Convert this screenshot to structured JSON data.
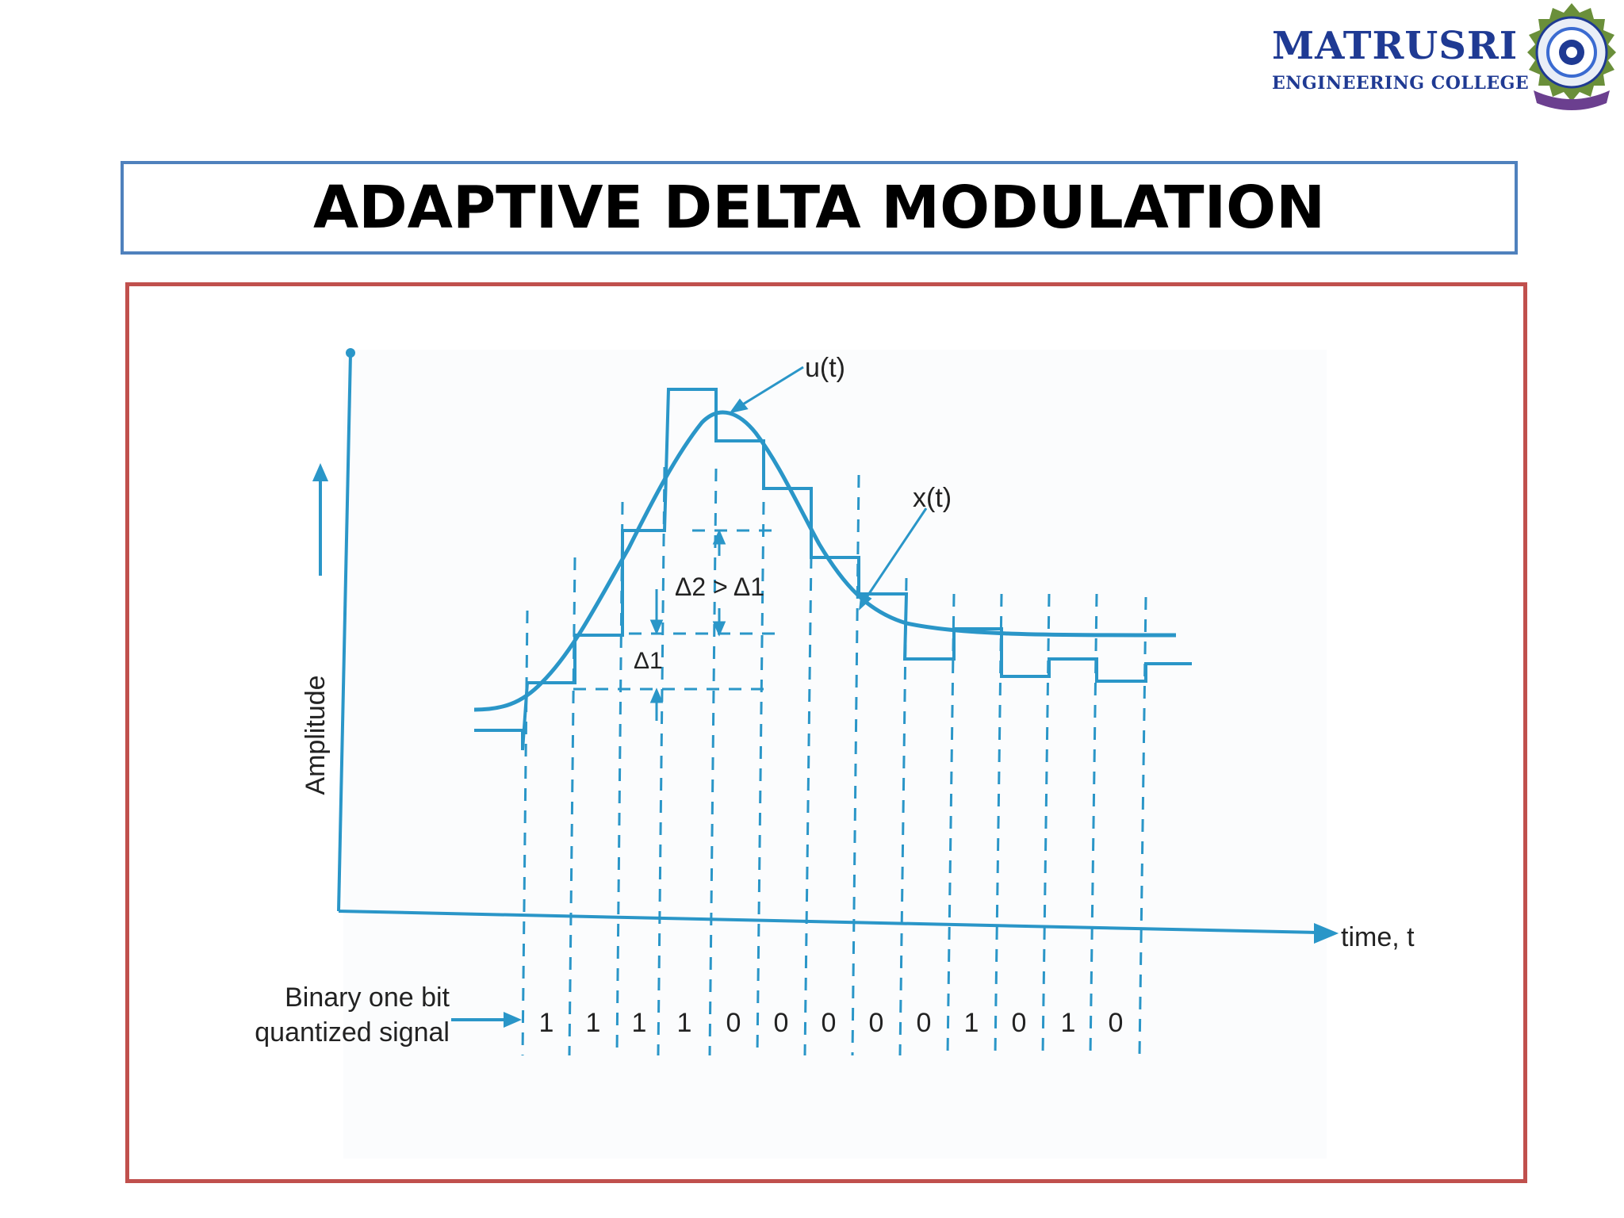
{
  "header": {
    "college_name": "MATRUSRI",
    "college_subtitle": "ENGINEERING COLLEGE",
    "logo_icon": "college-seal-icon",
    "brand_color": "#1f3a93"
  },
  "slide": {
    "title": "ADAPTIVE DELTA MODULATION",
    "title_border_color": "#4f81bd",
    "figure_border_color": "#c0504d"
  },
  "diagram": {
    "signal_color": "#2a96c8",
    "y_axis_label": "Amplitude",
    "x_axis_label": "time, t",
    "curve_label_u": "u(t)",
    "curve_label_x": "x(t)",
    "step_label_small": "Δ1",
    "step_label_compare": "Δ2 > Δ1",
    "bits_label_line1": "Binary one bit",
    "bits_label_line2": "quantized signal",
    "bits": [
      "1",
      "1",
      "1",
      "1",
      "0",
      "0",
      "0",
      "0",
      "0",
      "1",
      "0",
      "1",
      "0"
    ]
  }
}
